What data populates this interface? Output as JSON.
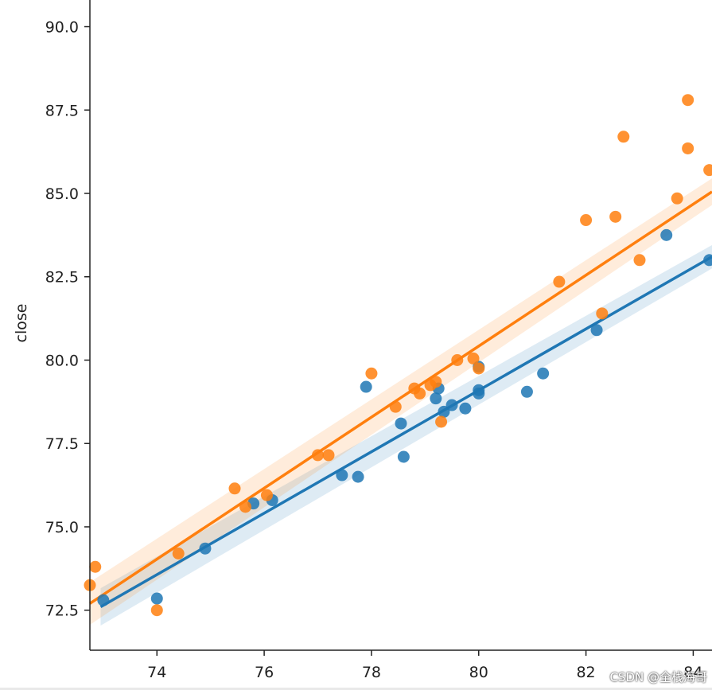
{
  "chart_data": {
    "type": "scatter",
    "xlabel": "",
    "ylabel": "close",
    "xlim": [
      72.75,
      84.35
    ],
    "ylim": [
      71.3,
      90.8
    ],
    "xticks": [
      74,
      76,
      78,
      80,
      82,
      84
    ],
    "xtick_labels": [
      "74",
      "76",
      "78",
      "80",
      "82",
      "84"
    ],
    "yticks": [
      72.5,
      75.0,
      77.5,
      80.0,
      82.5,
      85.0,
      87.5,
      90.0
    ],
    "ytick_labels": [
      "72.5",
      "75.0",
      "77.5",
      "80.0",
      "82.5",
      "85.0",
      "87.5",
      "90.0"
    ],
    "grid": false,
    "series": [
      {
        "color": "#1f77b4",
        "points": [
          [
            73.0,
            72.8
          ],
          [
            74.0,
            72.85
          ],
          [
            74.9,
            74.35
          ],
          [
            75.8,
            75.7
          ],
          [
            76.15,
            75.8
          ],
          [
            77.45,
            76.55
          ],
          [
            77.75,
            76.5
          ],
          [
            77.9,
            79.2
          ],
          [
            78.55,
            78.1
          ],
          [
            78.6,
            77.1
          ],
          [
            79.2,
            78.85
          ],
          [
            79.25,
            79.15
          ],
          [
            79.35,
            78.45
          ],
          [
            79.5,
            78.65
          ],
          [
            79.75,
            78.55
          ],
          [
            80.0,
            79.0
          ],
          [
            80.0,
            79.1
          ],
          [
            80.0,
            79.8
          ],
          [
            80.9,
            79.05
          ],
          [
            81.2,
            79.6
          ],
          [
            82.2,
            80.9
          ],
          [
            83.5,
            83.75
          ],
          [
            84.3,
            83.0
          ]
        ],
        "fit": {
          "x_start": 72.95,
          "y_start": 72.6,
          "x_end": 84.35,
          "y_end": 83.1
        },
        "band_halfwidth": 0.35
      },
      {
        "color": "#ff7f0e",
        "points": [
          [
            72.75,
            73.25
          ],
          [
            72.85,
            73.8
          ],
          [
            74.0,
            72.5
          ],
          [
            74.4,
            74.2
          ],
          [
            75.45,
            76.15
          ],
          [
            75.65,
            75.6
          ],
          [
            76.05,
            75.95
          ],
          [
            77.0,
            77.15
          ],
          [
            77.2,
            77.15
          ],
          [
            78.0,
            79.6
          ],
          [
            78.45,
            78.6
          ],
          [
            78.8,
            79.15
          ],
          [
            78.9,
            79.0
          ],
          [
            79.1,
            79.25
          ],
          [
            79.2,
            79.35
          ],
          [
            79.3,
            78.15
          ],
          [
            79.6,
            80.0
          ],
          [
            79.9,
            80.05
          ],
          [
            80.0,
            79.75
          ],
          [
            81.5,
            82.35
          ],
          [
            82.0,
            84.2
          ],
          [
            82.3,
            81.4
          ],
          [
            82.55,
            84.3
          ],
          [
            82.7,
            86.7
          ],
          [
            83.0,
            83.0
          ],
          [
            83.7,
            84.85
          ],
          [
            83.9,
            87.8
          ],
          [
            83.9,
            86.35
          ],
          [
            84.3,
            85.7
          ]
        ],
        "fit": {
          "x_start": 72.75,
          "y_start": 72.7,
          "x_end": 84.35,
          "y_end": 85.05
        },
        "band_halfwidth": 0.4
      }
    ]
  },
  "watermark": "CSDN @全栈海哥"
}
